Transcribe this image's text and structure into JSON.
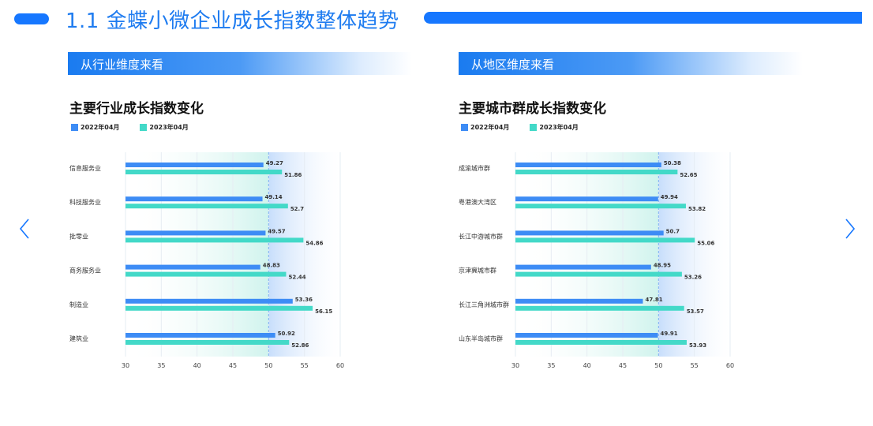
{
  "header": {
    "title": "1.1 金蝶小微企业成长指数整体趋势"
  },
  "sections": {
    "left_header": "从行业维度来看",
    "right_header": "从地区维度来看"
  },
  "colors": {
    "accent": "#1677ff",
    "series_2022": "#3d8cf5",
    "series_2023": "#43d9c8"
  },
  "chart_data": [
    {
      "type": "bar",
      "orientation": "horizontal",
      "title": "主要行业成长指数变化",
      "categories": [
        "信息服务业",
        "科技服务业",
        "批零业",
        "商务服务业",
        "制造业",
        "建筑业"
      ],
      "series": [
        {
          "name": "2022年04月",
          "values": [
            49.27,
            49.14,
            49.57,
            48.83,
            53.36,
            50.92
          ]
        },
        {
          "name": "2023年04月",
          "values": [
            51.86,
            52.7,
            54.86,
            52.44,
            56.15,
            52.86
          ]
        }
      ],
      "xlim": [
        30,
        60
      ],
      "xticks": [
        "30",
        "35",
        "40",
        "45",
        "50",
        "55",
        "60"
      ],
      "reference_line": 50,
      "legend": "top-left",
      "grid": true
    },
    {
      "type": "bar",
      "orientation": "horizontal",
      "title": "主要城市群成长指数变化",
      "categories": [
        "成渝城市群",
        "粤港澳大湾区",
        "长江中游城市群",
        "京津冀城市群",
        "长江三角洲城市群",
        "山东半岛城市群"
      ],
      "series": [
        {
          "name": "2022年04月",
          "values": [
            50.38,
            49.94,
            50.7,
            48.95,
            47.81,
            49.91
          ]
        },
        {
          "name": "2023年04月",
          "values": [
            52.65,
            53.82,
            55.06,
            53.26,
            53.57,
            53.93
          ]
        }
      ],
      "xlim": [
        30,
        60
      ],
      "xticks": [
        "30",
        "35",
        "40",
        "45",
        "50",
        "55",
        "60"
      ],
      "reference_line": 50,
      "legend": "top-left",
      "grid": true
    }
  ]
}
